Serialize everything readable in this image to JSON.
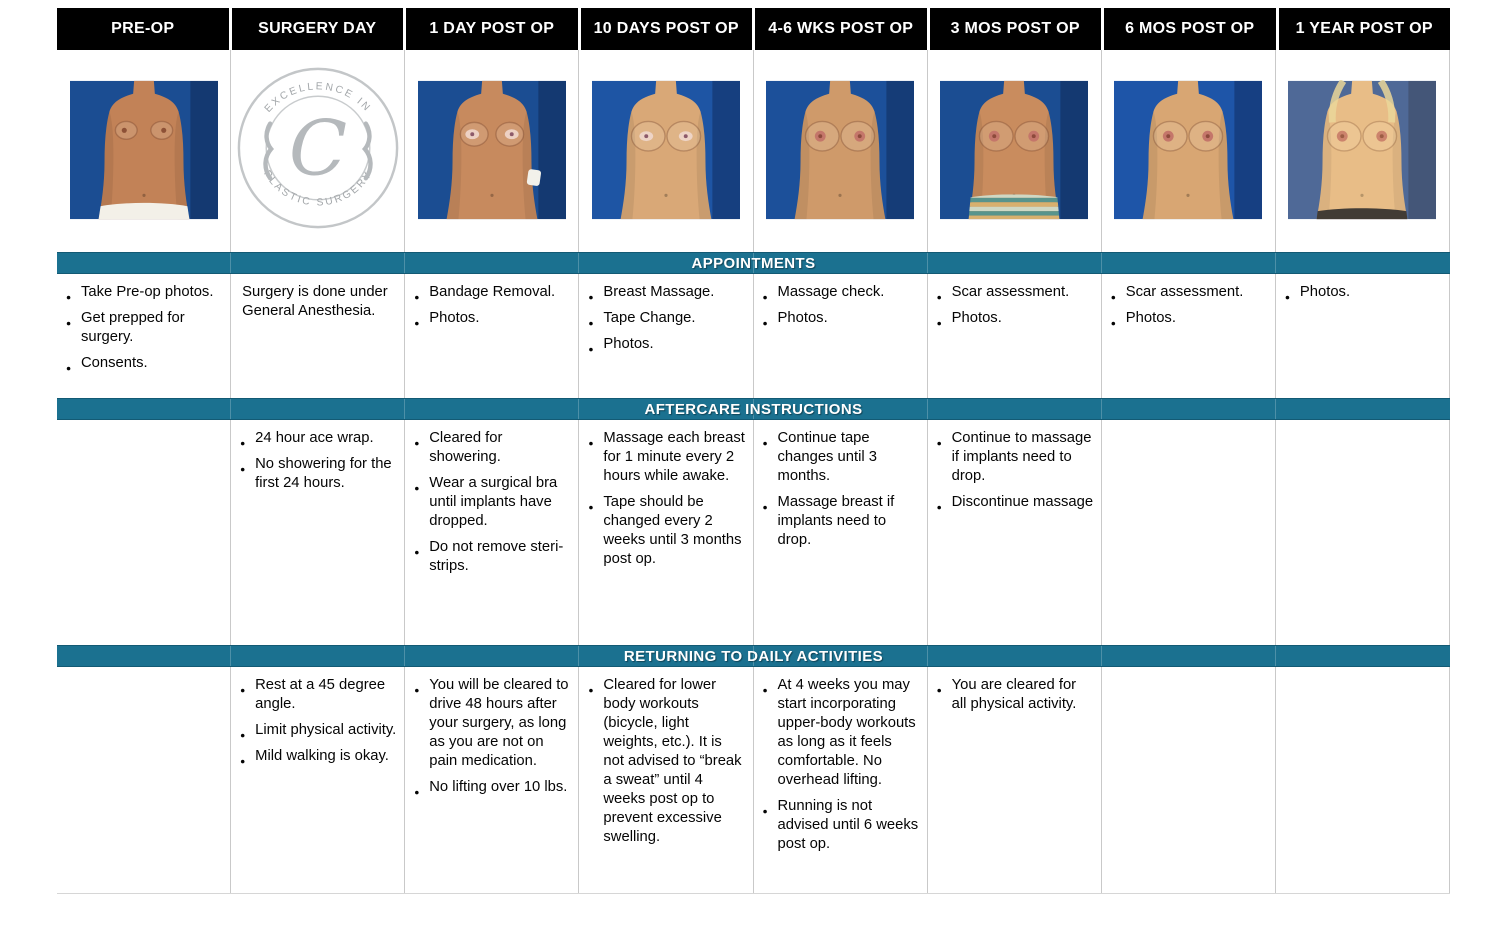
{
  "banners": {
    "appointments": "APPOINTMENTS",
    "aftercare": "AFTERCARE INSTRUCTIONS",
    "activities": "RETURNING TO DAILY ACTIVITIES"
  },
  "colors": {
    "banner_teal": "#1b7190",
    "header_black": "#000000",
    "grid_line": "#c9c9c9",
    "photo_blue_background": "#1c4e94"
  },
  "logo": {
    "top_text": "EXCELLENCE IN",
    "bottom_text": "PLASTIC SURGERY",
    "monogram": "C"
  },
  "columns": [
    {
      "header": "PRE-OP",
      "photo": {
        "kind": "photo",
        "bg": "#1b4d92",
        "skin": "#c28257",
        "breast": "small",
        "areola": "none",
        "garment": "white"
      },
      "appointments_bulleted": true,
      "appointments": [
        "Take Pre-op photos.",
        "Get prepped for surgery.",
        "Consents."
      ],
      "aftercare": [],
      "activities": []
    },
    {
      "header": "SURGERY  DAY",
      "photo": {
        "kind": "logo"
      },
      "appointments_bulleted": false,
      "appointments": [
        "Surgery is done under General Anesthesia."
      ],
      "aftercare": [
        "24 hour ace wrap.",
        "No showering for the first 24 hours."
      ],
      "activities": [
        "Rest at a 45 degree angle.",
        "Limit physical activity.",
        "Mild walking is okay."
      ]
    },
    {
      "header": "1 DAY POST OP",
      "photo": {
        "kind": "photo",
        "bg": "#1b4d92",
        "skin": "#c78a5e",
        "breast": "medium",
        "areola": "tape",
        "garment": null,
        "bandage": true
      },
      "appointments_bulleted": true,
      "appointments": [
        "Bandage Removal.",
        "Photos."
      ],
      "aftercare": [
        "Cleared for showering.",
        "Wear a surgical bra until implants have dropped.",
        "Do not remove steri-strips."
      ],
      "activities": [
        "You will be cleared to drive 48 hours after your surgery, as long as you are not on pain medication.",
        "No lifting over 10 lbs."
      ]
    },
    {
      "header": "10 DAYS POST OP",
      "photo": {
        "kind": "photo",
        "bg": "#1e55a4",
        "skin": "#d9a877",
        "breast": "large",
        "areola": "tape",
        "garment": null
      },
      "appointments_bulleted": true,
      "appointments": [
        "Breast Massage.",
        "Tape Change.",
        "Photos."
      ],
      "aftercare": [
        "Massage each breast for 1 minute every 2 hours while awake.",
        "Tape should be changed every 2 weeks until 3 months post op."
      ],
      "activities": [
        "Cleared for lower body workouts (bicycle, light weights, etc.).  It is not advised to “break a sweat” until 4 weeks post op to prevent excessive swelling."
      ]
    },
    {
      "header": "4-6 WKS POST OP",
      "photo": {
        "kind": "photo",
        "bg": "#1c509a",
        "skin": "#cf9a6a",
        "breast": "large",
        "areola": "pink",
        "garment": null
      },
      "appointments_bulleted": true,
      "appointments": [
        "Massage check.",
        "Photos."
      ],
      "aftercare": [
        "Continue tape changes until 3 months.",
        "Massage breast if implants need to drop."
      ],
      "activities": [
        "At 4 weeks you may start incorporating upper-body workouts as long as it feels comfortable. No overhead lifting.",
        "Running is not advised until 6 weeks post op."
      ]
    },
    {
      "header": "3 MOS POST OP",
      "photo": {
        "kind": "photo",
        "bg": "#1b4d92",
        "skin": "#c98c5e",
        "breast": "large",
        "areola": "pink",
        "garment": "stripes"
      },
      "appointments_bulleted": true,
      "appointments": [
        "Scar assessment.",
        "Photos."
      ],
      "aftercare": [
        "Continue to massage if implants need to drop.",
        "Discontinue massage"
      ],
      "activities": [
        "You are cleared for all physical activity."
      ]
    },
    {
      "header": "6 MOS POST OP",
      "photo": {
        "kind": "photo",
        "bg": "#1e55a8",
        "skin": "#d8a673",
        "breast": "large",
        "areola": "pink",
        "garment": null
      },
      "appointments_bulleted": true,
      "appointments": [
        "Scar assessment.",
        "Photos."
      ],
      "aftercare": [],
      "activities": []
    },
    {
      "header": "1 YEAR POST OP",
      "photo": {
        "kind": "photo",
        "bg": "#33589d",
        "skin": "#e5ba8a",
        "breast": "large",
        "areola": "pink",
        "garment": "dark",
        "hair": true,
        "tint": true
      },
      "appointments_bulleted": true,
      "appointments": [
        "Photos."
      ],
      "aftercare": [],
      "activities": []
    }
  ]
}
